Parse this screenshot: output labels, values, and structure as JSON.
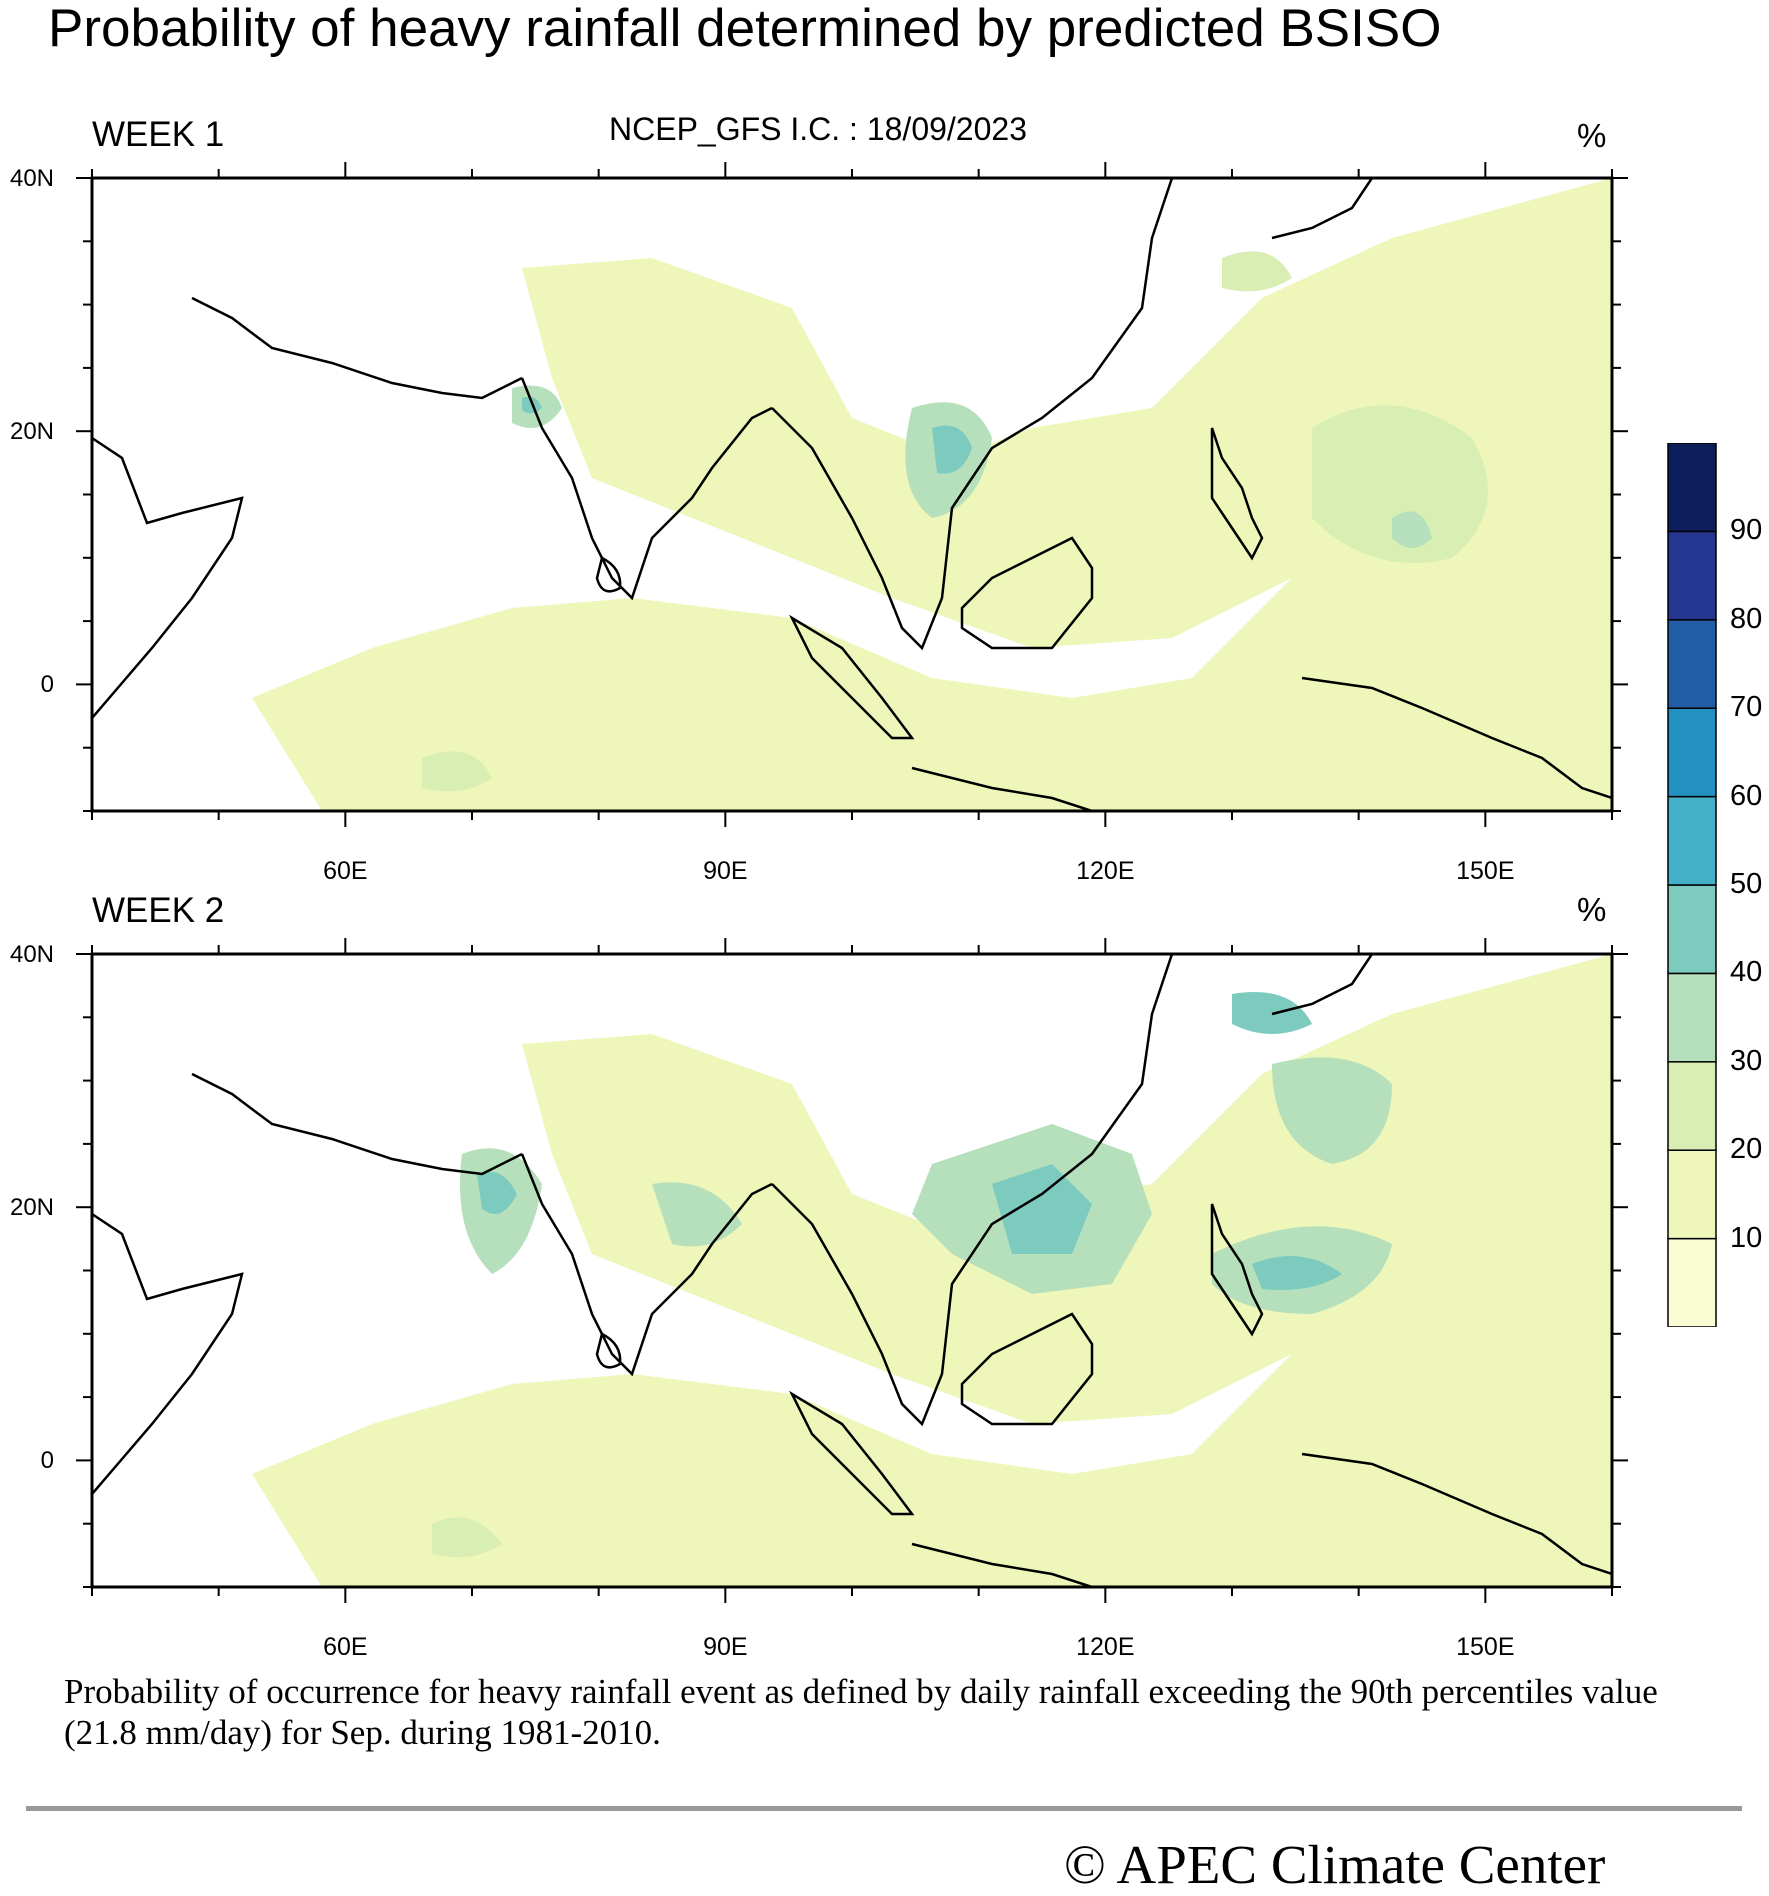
{
  "title": "Probability of heavy rainfall determined by predicted BSISO",
  "subtitle": "NCEP_GFS  I.C. : 18/09/2023",
  "unit": "%",
  "panels": [
    {
      "label": "WEEK 1"
    },
    {
      "label": "WEEK 2"
    }
  ],
  "map_extent": {
    "lon": [
      40,
      160
    ],
    "lat": [
      -10,
      40
    ]
  },
  "lat_ticks": [
    "40N",
    "20N",
    "0"
  ],
  "lon_ticks": [
    "60E",
    "90E",
    "120E",
    "150E"
  ],
  "colorbar": {
    "labels": [
      "10",
      "20",
      "30",
      "40",
      "50",
      "60",
      "70",
      "80",
      "90"
    ],
    "colors": [
      "#fafdd3",
      "#eef6b9",
      "#d8eeb3",
      "#b6e0bb",
      "#7dcbbf",
      "#44b1c8",
      "#2391c2",
      "#225ea8",
      "#24368f",
      "#0c1f5a"
    ]
  },
  "footnote": "Probability of occurrence for heavy rainfall event as defined by daily rainfall exceeding the 90th percentiles value (21.8 mm/day) for Sep. during 1981-2010.",
  "copyright": "©  APEC Climate Center"
}
